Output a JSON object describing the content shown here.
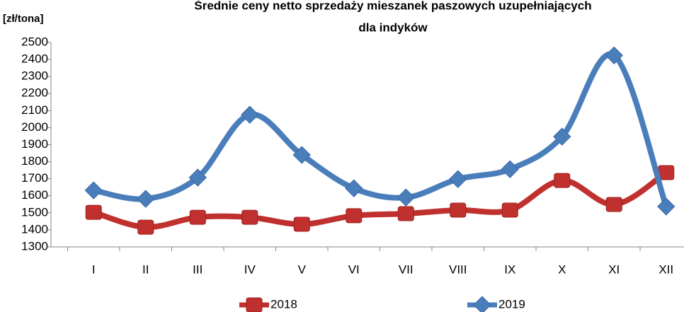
{
  "chart_data": {
    "type": "line",
    "title": [
      "Średnie ceny netto sprzedaży mieszanek paszowych uzupełniających",
      "dla indyków"
    ],
    "y_label": "[zł/tona]",
    "categories": [
      "I",
      "II",
      "III",
      "IV",
      "V",
      "VI",
      "VII",
      "VIII",
      "IX",
      "X",
      "XI",
      "XII"
    ],
    "series": [
      {
        "name": "2018",
        "color": "#c0302e",
        "marker": "square",
        "values": [
          1503,
          1416,
          1474,
          1474,
          1433,
          1483,
          1495,
          1516,
          1516,
          1690,
          1549,
          1736
        ]
      },
      {
        "name": "2019",
        "color": "#4a7ebb",
        "marker": "diamond",
        "values": [
          1632,
          1582,
          1707,
          2076,
          1840,
          1644,
          1590,
          1698,
          1756,
          1947,
          2424,
          1537
        ]
      }
    ],
    "ylim": [
      1300,
      2500
    ],
    "yticks": [
      1300,
      1400,
      1500,
      1600,
      1700,
      1800,
      1900,
      2000,
      2100,
      2200,
      2300,
      2400,
      2500
    ],
    "grid": false,
    "legend": "bottom"
  }
}
